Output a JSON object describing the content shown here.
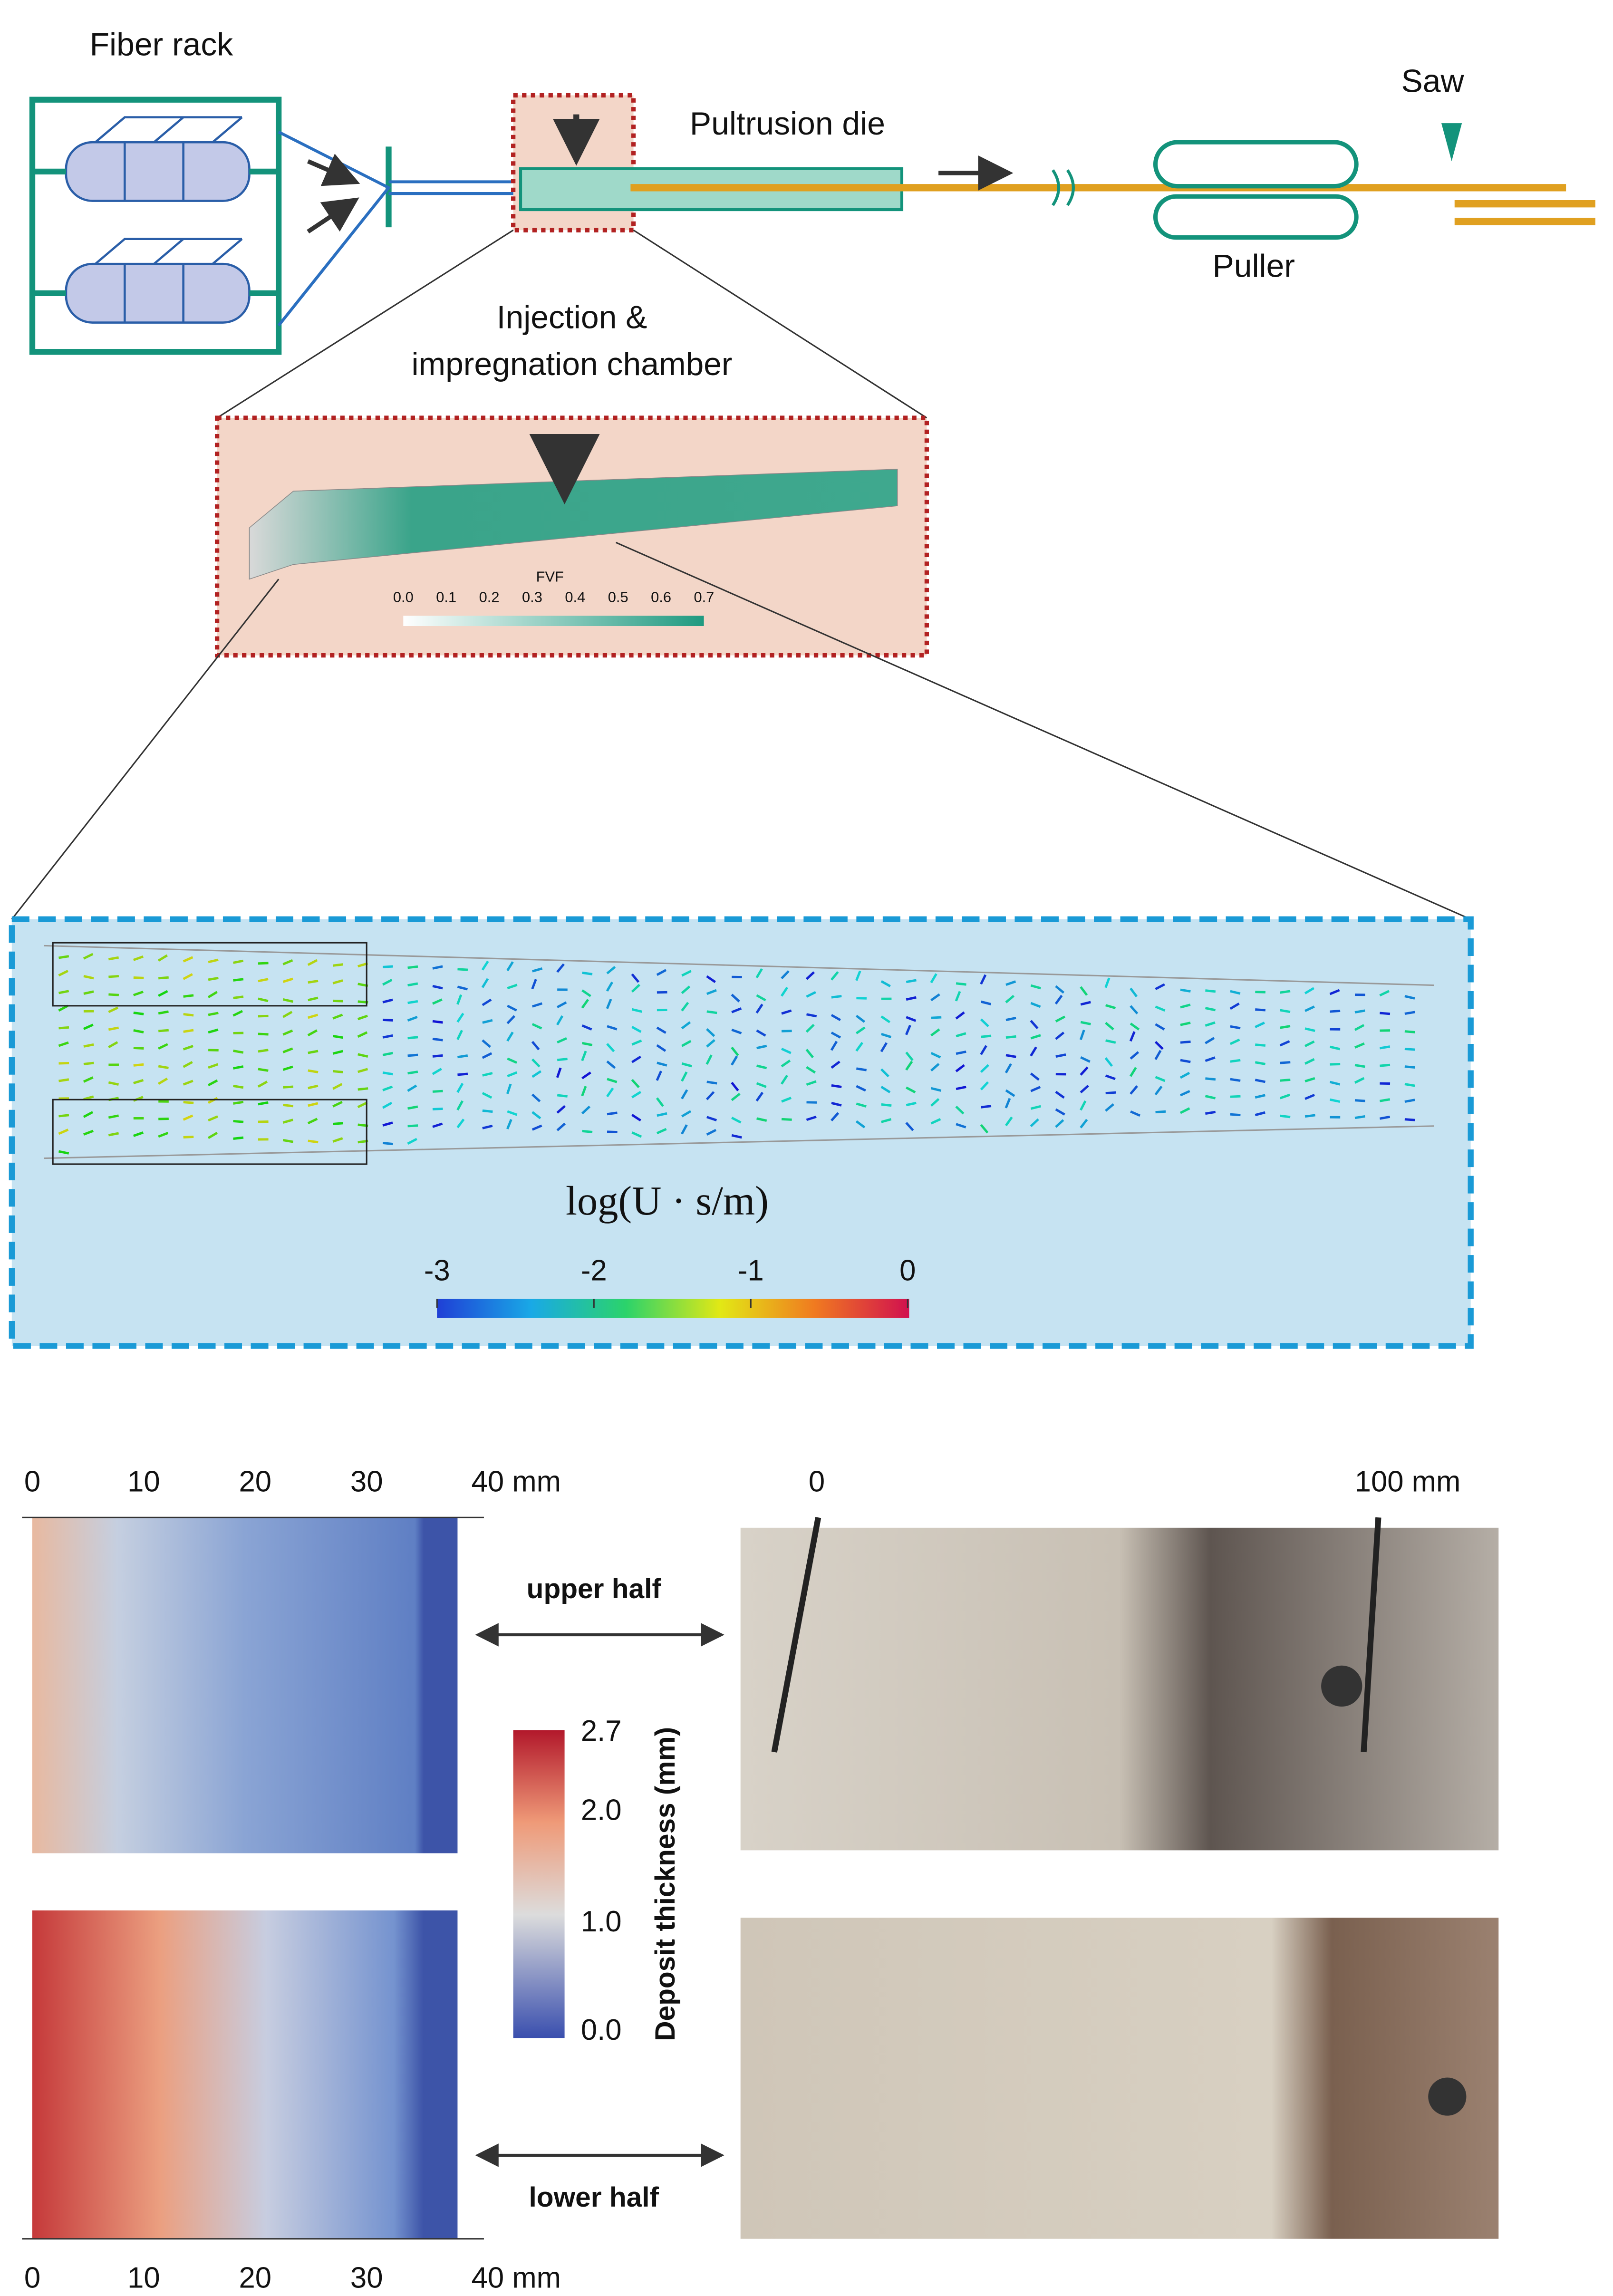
{
  "process": {
    "fiber_rack": "Fiber rack",
    "pultrusion_die": "Pultrusion die",
    "saw": "Saw",
    "puller": "Puller",
    "chamber_line1": "Injection &",
    "chamber_line2": "impregnation chamber"
  },
  "fvf": {
    "title": "FVF",
    "ticks": [
      "0.0",
      "0.1",
      "0.2",
      "0.3",
      "0.4",
      "0.5",
      "0.6",
      "0.7"
    ]
  },
  "velocity": {
    "label": "log(U · s/m)",
    "ticks": [
      "-3",
      "-2",
      "-1",
      "0"
    ]
  },
  "deposit": {
    "top_ticks": [
      "0",
      "10",
      "20",
      "30",
      "40 mm"
    ],
    "bottom_ticks": [
      "0",
      "10",
      "20",
      "30",
      "40 mm"
    ],
    "colorbar_ticks": [
      "2.7",
      "2.0",
      "1.0",
      "0.0"
    ],
    "colorbar_label": "Deposit thickness (mm)",
    "upper": "upper half",
    "lower": "lower half",
    "photo_ticks": [
      "0",
      "100 mm"
    ]
  }
}
